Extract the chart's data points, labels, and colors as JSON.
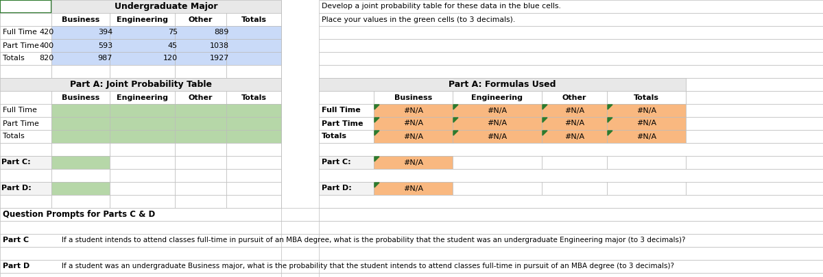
{
  "title1": "Undergraduate Major",
  "title_partA_left": "Part A: Joint Probability Table",
  "title_partA_right": "Part A: Formulas Used",
  "col_headers": [
    "Business",
    "Engineering",
    "Other",
    "Totals"
  ],
  "row_headers": [
    "Full Time",
    "Part Time",
    "Totals"
  ],
  "data_table": [
    [
      420,
      394,
      75,
      889
    ],
    [
      400,
      593,
      45,
      1038
    ],
    [
      820,
      987,
      120,
      1927
    ]
  ],
  "blue_color": "#c9daf8",
  "green_color": "#b6d7a8",
  "orange_color": "#f9b880",
  "header_bg": "#e8e8e8",
  "light_gray": "#f3f3f3",
  "grid_color": "#bbbbbb",
  "instruction1": "Develop a joint probability table for these data in the blue cells.",
  "instruction2": "Place your values in the green cells (to 3 decimals).",
  "na_text": "#N/A",
  "part_c_label": "Part C:",
  "part_d_label": "Part D:",
  "q_header": "Question Prompts for Parts C & D",
  "part_c_q": "Part C",
  "part_d_q": "Part D",
  "part_c_text": "If a student intends to attend classes full-time in pursuit of an MBA degree, what is the probability that the student was an undergraduate Engineering major (to 3 decimals)?",
  "part_d_text": "If a student was an undergraduate Business major, what is the probability that the student intends to attend classes full-time in pursuit of an MBA degree (to 3 decimals)?",
  "triangle_color": "#2d7a2d",
  "green_border_color": "#2d7a2d"
}
